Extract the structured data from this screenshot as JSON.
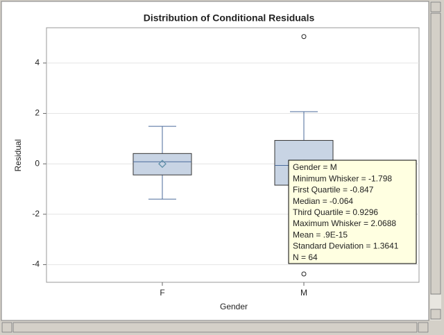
{
  "chart_data": {
    "type": "box",
    "title": "Distribution of Conditional Residuals",
    "x_label": "Gender",
    "y_label": "Residual",
    "categories": [
      "F",
      "M"
    ],
    "boxes": [
      {
        "min": -1.4,
        "q1": -0.44,
        "median": 0.08,
        "q3": 0.41,
        "max": 1.49,
        "mean": 0.0,
        "outliers": []
      },
      {
        "min": -1.798,
        "q1": -0.847,
        "median": -0.064,
        "q3": 0.9296,
        "max": 2.0688,
        "mean": 9e-16,
        "outliers": [
          5.05,
          -4.37
        ]
      }
    ],
    "ylim": [
      -4.7,
      5.4
    ],
    "yticks": [
      -4,
      -2,
      0,
      2,
      4
    ],
    "grid": true,
    "box_color": "#c8d4e4",
    "line_color": "#4a6a9a",
    "tooltip": [
      "Gender = M",
      "Minimum Whisker = -1.798",
      "First Quartile = -0.847",
      "Median = -0.064",
      "Third Quartile = 0.9296",
      "Maximum Whisker = 2.0688",
      "Mean = .9E-15",
      "Standard Deviation = 1.3641",
      "N = 64"
    ]
  }
}
